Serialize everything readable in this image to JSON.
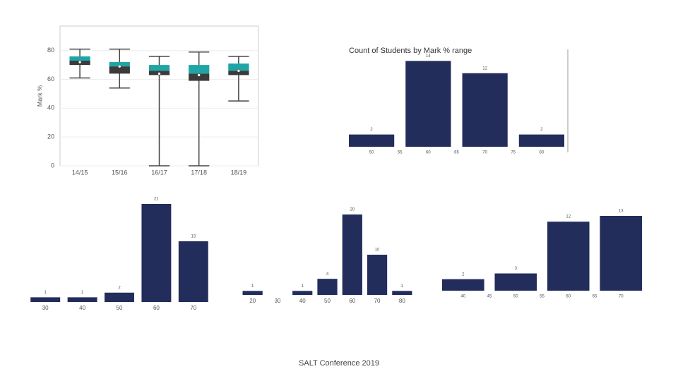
{
  "chart_data": [
    {
      "type": "box",
      "ylabel": "Mark %",
      "categories": [
        "14/15",
        "15/16",
        "16/17",
        "17/18",
        "18/19"
      ],
      "boxes": [
        {
          "whisker_low": 61,
          "q1": 70,
          "median": 73,
          "q3": 76,
          "whisker_high": 81,
          "mean": 72
        },
        {
          "whisker_low": 54,
          "q1": 64,
          "median": 69,
          "q3": 72,
          "whisker_high": 81,
          "mean": 69
        },
        {
          "whisker_low": 0,
          "q1": 63,
          "median": 66,
          "q3": 70,
          "whisker_high": 76,
          "mean": 64
        },
        {
          "whisker_low": 0,
          "q1": 59,
          "median": 64,
          "q3": 70,
          "whisker_high": 79,
          "mean": 63
        },
        {
          "whisker_low": 45,
          "q1": 63,
          "median": 66,
          "q3": 71,
          "whisker_high": 76,
          "mean": 66
        }
      ],
      "upper_color": "#1ea5a5",
      "lower_color": "#3b3b3b",
      "ylim": [
        0,
        97
      ],
      "yticks": [
        0,
        20,
        40,
        60,
        80
      ],
      "grid": true
    },
    {
      "type": "bar",
      "title": "Count of Students by Mark % range",
      "x": [
        50,
        60,
        70,
        80
      ],
      "values": [
        2,
        14,
        12,
        2
      ],
      "color": "#222d5c",
      "xlim": [
        46,
        84
      ],
      "xticks": [
        50,
        55,
        60,
        65,
        70,
        75,
        80
      ],
      "ylim": [
        0,
        16
      ]
    },
    {
      "type": "bar",
      "categories": [
        "30",
        "40",
        "50",
        "60",
        "70"
      ],
      "values": [
        1,
        1,
        2,
        21,
        13
      ],
      "color": "#222d5c",
      "ylim": [
        0,
        21
      ]
    },
    {
      "type": "bar",
      "categories": [
        "20",
        "30",
        "40",
        "50",
        "60",
        "70",
        "80"
      ],
      "values": [
        1,
        null,
        1,
        4,
        20,
        10,
        1
      ],
      "color": "#222d5c",
      "ylim": [
        0,
        20
      ]
    },
    {
      "type": "bar",
      "x": [
        40,
        50,
        60,
        70
      ],
      "values": [
        2,
        3,
        12,
        13
      ],
      "color": "#222d5c",
      "xlim": [
        36,
        74
      ],
      "xticks": [
        40,
        45,
        50,
        55,
        60,
        65,
        70
      ],
      "ylim": [
        0,
        13
      ]
    }
  ],
  "footer": "SALT Conference 2019"
}
